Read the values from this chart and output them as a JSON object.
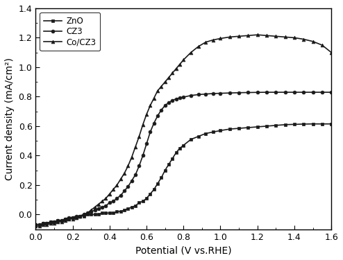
{
  "title": "",
  "xlabel": "Potential (V vs.RHE)",
  "ylabel": "Current density (mA/cm²)",
  "xlim": [
    0.0,
    1.6
  ],
  "ylim": [
    -0.1,
    1.4
  ],
  "yticks": [
    0.0,
    0.2,
    0.4,
    0.6,
    0.8,
    1.0,
    1.2,
    1.4
  ],
  "xticks": [
    0.0,
    0.2,
    0.4,
    0.6,
    0.8,
    1.0,
    1.2,
    1.4,
    1.6
  ],
  "line_color": "#1a1a1a",
  "legend_labels": [
    "ZnO",
    "CZ3",
    "Co/CZ3"
  ],
  "markers": [
    "s",
    "o",
    "^"
  ],
  "ZnO_x": [
    0.0,
    0.02,
    0.04,
    0.06,
    0.08,
    0.1,
    0.12,
    0.14,
    0.16,
    0.18,
    0.2,
    0.22,
    0.24,
    0.26,
    0.28,
    0.3,
    0.32,
    0.34,
    0.36,
    0.38,
    0.4,
    0.42,
    0.44,
    0.46,
    0.48,
    0.5,
    0.52,
    0.54,
    0.56,
    0.58,
    0.6,
    0.62,
    0.64,
    0.66,
    0.68,
    0.7,
    0.72,
    0.74,
    0.76,
    0.78,
    0.8,
    0.84,
    0.88,
    0.92,
    0.96,
    1.0,
    1.05,
    1.1,
    1.15,
    1.2,
    1.25,
    1.3,
    1.35,
    1.4,
    1.45,
    1.5,
    1.55,
    1.6
  ],
  "ZnO_y": [
    -0.07,
    -0.07,
    -0.06,
    -0.06,
    -0.05,
    -0.05,
    -0.04,
    -0.04,
    -0.03,
    -0.03,
    -0.02,
    -0.02,
    -0.01,
    -0.01,
    0.0,
    0.0,
    0.0,
    0.0,
    0.01,
    0.01,
    0.01,
    0.01,
    0.02,
    0.02,
    0.03,
    0.04,
    0.05,
    0.06,
    0.08,
    0.09,
    0.11,
    0.14,
    0.17,
    0.21,
    0.25,
    0.3,
    0.34,
    0.38,
    0.42,
    0.45,
    0.47,
    0.51,
    0.53,
    0.55,
    0.56,
    0.57,
    0.58,
    0.585,
    0.59,
    0.595,
    0.6,
    0.605,
    0.61,
    0.612,
    0.614,
    0.615,
    0.615,
    0.615
  ],
  "CZ3_x": [
    0.0,
    0.02,
    0.04,
    0.06,
    0.08,
    0.1,
    0.12,
    0.14,
    0.16,
    0.18,
    0.2,
    0.22,
    0.24,
    0.26,
    0.28,
    0.3,
    0.32,
    0.34,
    0.36,
    0.38,
    0.4,
    0.42,
    0.44,
    0.46,
    0.48,
    0.5,
    0.52,
    0.54,
    0.56,
    0.58,
    0.6,
    0.62,
    0.64,
    0.66,
    0.68,
    0.7,
    0.72,
    0.74,
    0.76,
    0.78,
    0.8,
    0.84,
    0.88,
    0.92,
    0.96,
    1.0,
    1.05,
    1.1,
    1.15,
    1.2,
    1.25,
    1.3,
    1.35,
    1.4,
    1.45,
    1.5,
    1.55,
    1.6
  ],
  "CZ3_y": [
    -0.07,
    -0.07,
    -0.06,
    -0.06,
    -0.05,
    -0.05,
    -0.04,
    -0.04,
    -0.03,
    -0.02,
    -0.02,
    -0.01,
    -0.01,
    0.0,
    0.01,
    0.02,
    0.03,
    0.04,
    0.05,
    0.06,
    0.08,
    0.09,
    0.11,
    0.13,
    0.16,
    0.19,
    0.23,
    0.27,
    0.33,
    0.4,
    0.48,
    0.56,
    0.62,
    0.67,
    0.71,
    0.74,
    0.76,
    0.775,
    0.785,
    0.792,
    0.797,
    0.808,
    0.814,
    0.818,
    0.821,
    0.823,
    0.825,
    0.827,
    0.828,
    0.829,
    0.83,
    0.83,
    0.83,
    0.83,
    0.83,
    0.83,
    0.83,
    0.83
  ],
  "CoCZ3_x": [
    0.0,
    0.02,
    0.04,
    0.06,
    0.08,
    0.1,
    0.12,
    0.14,
    0.16,
    0.18,
    0.2,
    0.22,
    0.24,
    0.26,
    0.28,
    0.3,
    0.32,
    0.34,
    0.36,
    0.38,
    0.4,
    0.42,
    0.44,
    0.46,
    0.48,
    0.5,
    0.52,
    0.54,
    0.56,
    0.58,
    0.6,
    0.62,
    0.64,
    0.66,
    0.68,
    0.7,
    0.72,
    0.74,
    0.76,
    0.78,
    0.8,
    0.84,
    0.88,
    0.92,
    0.96,
    1.0,
    1.05,
    1.1,
    1.15,
    1.2,
    1.25,
    1.3,
    1.35,
    1.4,
    1.45,
    1.5,
    1.55,
    1.6
  ],
  "CoCZ3_y": [
    -0.08,
    -0.08,
    -0.07,
    -0.07,
    -0.06,
    -0.06,
    -0.05,
    -0.05,
    -0.04,
    -0.03,
    -0.03,
    -0.02,
    -0.01,
    0.0,
    0.01,
    0.03,
    0.05,
    0.07,
    0.09,
    0.11,
    0.14,
    0.17,
    0.2,
    0.24,
    0.28,
    0.33,
    0.39,
    0.46,
    0.53,
    0.61,
    0.68,
    0.74,
    0.79,
    0.84,
    0.87,
    0.9,
    0.93,
    0.96,
    0.99,
    1.02,
    1.05,
    1.1,
    1.14,
    1.17,
    1.185,
    1.195,
    1.205,
    1.21,
    1.215,
    1.22,
    1.215,
    1.21,
    1.205,
    1.2,
    1.19,
    1.175,
    1.15,
    1.1
  ]
}
